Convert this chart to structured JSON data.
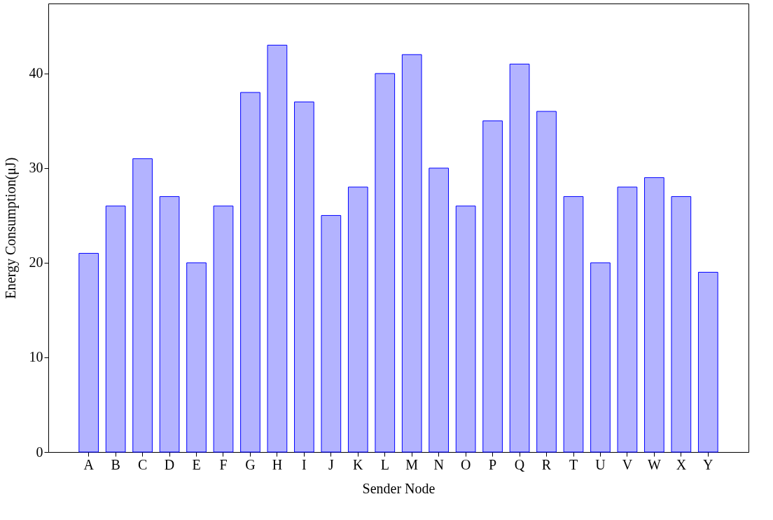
{
  "chart_data": {
    "type": "bar",
    "categories": [
      "A",
      "B",
      "C",
      "D",
      "E",
      "F",
      "G",
      "H",
      "I",
      "J",
      "K",
      "L",
      "M",
      "N",
      "O",
      "P",
      "Q",
      "R",
      "T",
      "U",
      "V",
      "W",
      "X",
      "Y"
    ],
    "values": [
      21,
      26,
      31,
      27,
      20,
      26,
      38,
      43,
      37,
      25,
      28,
      40,
      42,
      30,
      26,
      35,
      41,
      36,
      27,
      20,
      28,
      29,
      27,
      19
    ],
    "color": "#b3b3ff",
    "xlabel": "Sender Node",
    "ylabel": "Energy Consumption(μJ)",
    "ylim": [
      0,
      47.4
    ],
    "yticks": [
      0,
      10,
      20,
      30,
      40
    ],
    "grid": false
  }
}
